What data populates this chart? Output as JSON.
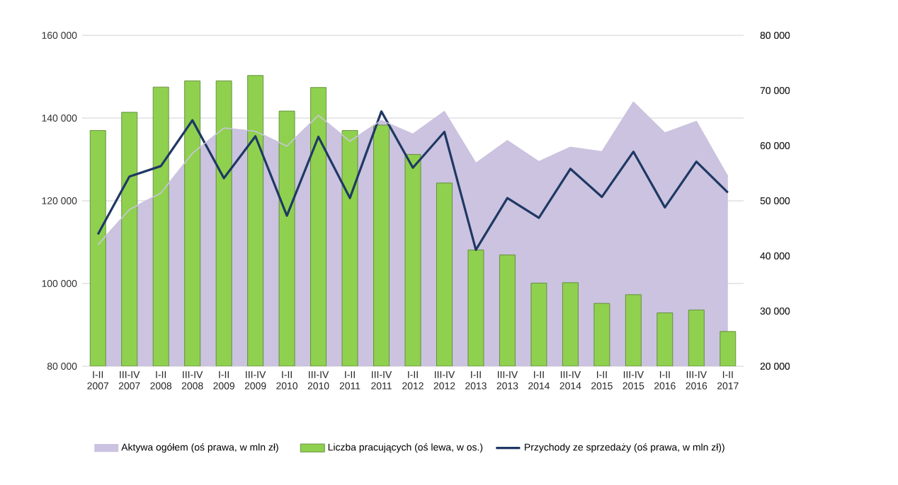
{
  "chart_data": {
    "type": "bar",
    "categories": [
      "I-II 2007",
      "III-IV 2007",
      "I-II 2008",
      "III-IV 2008",
      "I-II 2009",
      "III-IV 2009",
      "I-II 2010",
      "III-IV 2010",
      "I-II 2011",
      "III-IV 2011",
      "I-II 2012",
      "III-IV 2012",
      "I-II 2013",
      "III-IV 2013",
      "I-II 2014",
      "III-IV 2014",
      "I-II 2015",
      "III-IV 2015",
      "I-II 2016",
      "III-IV 2016",
      "I-II 2017"
    ],
    "series": [
      {
        "name": "Aktywa ogółem (oś prawa, w mln zł)",
        "type": "area",
        "axis": "y2",
        "color": "#cbc3df",
        "values": [
          42000,
          48400,
          51400,
          58600,
          63200,
          62600,
          59900,
          65500,
          60800,
          64600,
          62100,
          66200,
          56800,
          60900,
          57100,
          59700,
          58900,
          67900,
          62300,
          64400,
          54400
        ]
      },
      {
        "name": "Liczba pracujących (oś lewa, w os.)",
        "color": "#8fd14f",
        "values": [
          137000,
          141400,
          147500,
          149000,
          149000,
          150300,
          141700,
          147400,
          137000,
          138300,
          131200,
          124300,
          108100,
          106900,
          100100,
          100200,
          95200,
          97300,
          92900,
          93600,
          88400
        ]
      },
      {
        "name": "Przychody ze sprzedaży (oś prawa, w mln zł))",
        "type": "line",
        "axis": "y2",
        "color": "#1f3864",
        "values": [
          43900,
          54400,
          56300,
          64600,
          54100,
          61700,
          47300,
          61600,
          50500,
          66200,
          56000,
          62500,
          41100,
          50500,
          46900,
          55800,
          50700,
          58900,
          48800,
          57100,
          51500
        ]
      }
    ],
    "ylim": [
      80000,
      160000
    ],
    "yticks": [
      {
        "value": 80000,
        "label": "80 000"
      },
      {
        "value": 100000,
        "label": "100 000"
      },
      {
        "value": 120000,
        "label": "120 000"
      },
      {
        "value": 140000,
        "label": "140 000"
      },
      {
        "value": 160000,
        "label": "160 000"
      }
    ],
    "y2lim": [
      20000,
      80000
    ],
    "y2ticks": [
      {
        "value": 20000,
        "label": "20 000"
      },
      {
        "value": 30000,
        "label": "30 000"
      },
      {
        "value": 40000,
        "label": "40 000"
      },
      {
        "value": 50000,
        "label": "50 000"
      },
      {
        "value": 60000,
        "label": "60 000"
      },
      {
        "value": 70000,
        "label": "70 000"
      },
      {
        "value": 80000,
        "label": "80 000"
      }
    ],
    "grid": "y",
    "legend": "bottom"
  }
}
